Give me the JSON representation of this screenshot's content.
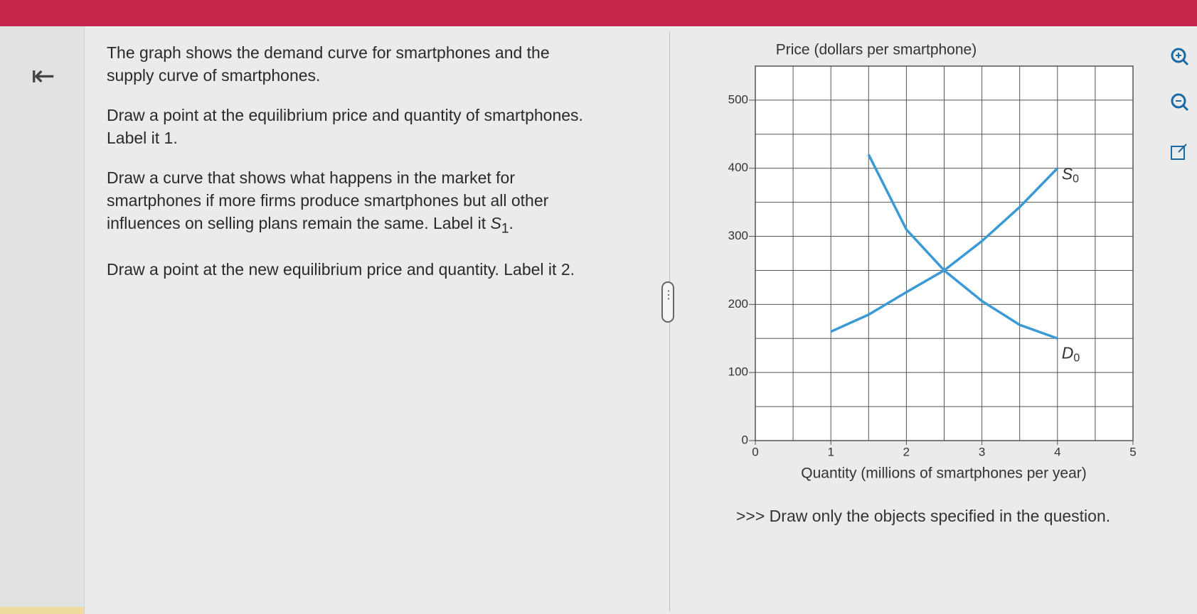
{
  "question": {
    "paragraphs": [
      {
        "lines": [
          "The graph shows the demand curve for smartphones and the",
          "supply curve of smartphones."
        ]
      },
      {
        "lines": [
          "Draw a point at the equilibrium price and quantity of smartphones.",
          "Label it 1."
        ]
      },
      {
        "lines": [
          "Draw a curve that shows what happens in the market for",
          "smartphones if more firms produce smartphones but all other",
          "influences on selling plans remain the same. Label it "
        ],
        "var": "S",
        "sub": "1",
        "end": "."
      },
      {
        "lines": [
          "Draw a point at the new equilibrium price and quantity. Label it 2."
        ]
      }
    ]
  },
  "note": ">>> Draw only the objects specified in the question.",
  "chart_data": {
    "type": "line",
    "y_label": "Price (dollars per smartphone)",
    "x_label": "Quantity (millions of smartphones per year)",
    "x": [
      1,
      1.5,
      2,
      2.5,
      3,
      3.5,
      4
    ],
    "series": [
      {
        "name": "S",
        "name_sub": "0",
        "color": "#3a9ad6",
        "values": [
          160,
          185,
          218,
          250,
          293,
          343,
          400
        ]
      },
      {
        "name": "D",
        "name_sub": "0",
        "color": "#3a9ad6",
        "values": [
          null,
          420,
          310,
          250,
          205,
          170,
          150
        ]
      }
    ],
    "xlim": [
      0,
      5
    ],
    "xticks": [
      0,
      1,
      2,
      3,
      4,
      5
    ],
    "x_minor_ticks": [
      0.5,
      1.5,
      2.5,
      3.5,
      4.5
    ],
    "ylim": [
      0,
      550
    ],
    "yticks": [
      0,
      100,
      200,
      300,
      400,
      500
    ],
    "y_minor_ticks": [
      50,
      150,
      250,
      350,
      450,
      550
    ],
    "grid": true
  }
}
